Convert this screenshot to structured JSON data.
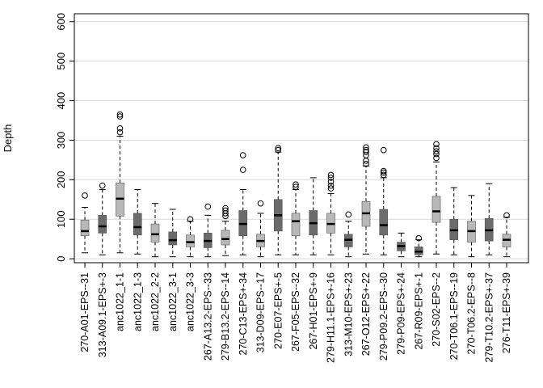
{
  "chart_data": {
    "type": "boxplot",
    "title": "",
    "xlabel": "",
    "ylabel": "Depth",
    "ylim": [
      -10,
      620
    ],
    "yticks": [
      0,
      100,
      200,
      300,
      400,
      500,
      600
    ],
    "grid": "horizontal",
    "colors": {
      "dark": "#6b6b6b",
      "light": "#b8b8b8"
    },
    "categories": [
      "270-A01-EPS--31",
      "313-A09.1-EPS+-3",
      "anc1022_1-1",
      "anc1022_1-3",
      "anc1022_2-2",
      "anc1022_3-1",
      "anc1022_3-3",
      "267-A13.2-EPS--33",
      "279-B13.2-EPS--14",
      "270-C13-EPS+-34",
      "313-D09-EPS--17",
      "270-E07-EPS+-5",
      "267-F05-EPS--32",
      "267-H01-EPS+-9",
      "279-H11.1-EPS+-16",
      "313-M10-EPS+-23",
      "267-O12-EPS+-22",
      "279-P09.2-EPS--30",
      "279-P09-EPS+-24",
      "267-R09-EPS+-1",
      "270-S02-EPS--2",
      "270-T06.1-EPS--19",
      "270-T06.2-EPS--8",
      "279-T10.2-EPS+-37",
      "276-T11-EPS+-39"
    ],
    "boxes": [
      {
        "min": 15,
        "q1": 58,
        "median": 70,
        "q3": 98,
        "max": 130,
        "outliers": [
          160
        ],
        "shade": "light"
      },
      {
        "min": 10,
        "q1": 65,
        "median": 82,
        "q3": 110,
        "max": 175,
        "outliers": [
          185
        ],
        "shade": "dark"
      },
      {
        "min": 15,
        "q1": 108,
        "median": 152,
        "q3": 192,
        "max": 310,
        "outliers": [
          320,
          330,
          360,
          365
        ],
        "shade": "light"
      },
      {
        "min": 12,
        "q1": 60,
        "median": 80,
        "q3": 115,
        "max": 175,
        "outliers": [],
        "shade": "dark"
      },
      {
        "min": 5,
        "q1": 42,
        "median": 62,
        "q3": 88,
        "max": 140,
        "outliers": [],
        "shade": "light"
      },
      {
        "min": 5,
        "q1": 35,
        "median": 47,
        "q3": 68,
        "max": 125,
        "outliers": [],
        "shade": "dark"
      },
      {
        "min": 5,
        "q1": 30,
        "median": 42,
        "q3": 60,
        "max": 95,
        "outliers": [
          100
        ],
        "shade": "light"
      },
      {
        "min": 5,
        "q1": 28,
        "median": 45,
        "q3": 65,
        "max": 110,
        "outliers": [
          132
        ],
        "shade": "dark"
      },
      {
        "min": 8,
        "q1": 35,
        "median": 50,
        "q3": 72,
        "max": 95,
        "outliers": [
          108,
          115,
          122,
          128
        ],
        "shade": "light"
      },
      {
        "min": 10,
        "q1": 58,
        "median": 88,
        "q3": 122,
        "max": 175,
        "outliers": [
          225,
          262
        ],
        "shade": "dark"
      },
      {
        "min": 5,
        "q1": 30,
        "median": 45,
        "q3": 62,
        "max": 115,
        "outliers": [
          140
        ],
        "shade": "light"
      },
      {
        "min": 10,
        "q1": 70,
        "median": 110,
        "q3": 150,
        "max": 270,
        "outliers": [
          275,
          280
        ],
        "shade": "dark"
      },
      {
        "min": 10,
        "q1": 58,
        "median": 95,
        "q3": 115,
        "max": 175,
        "outliers": [
          182,
          188
        ],
        "shade": "light"
      },
      {
        "min": 10,
        "q1": 60,
        "median": 90,
        "q3": 122,
        "max": 205,
        "outliers": [],
        "shade": "dark"
      },
      {
        "min": 10,
        "q1": 65,
        "median": 88,
        "q3": 115,
        "max": 165,
        "outliers": [
          178,
          185,
          195,
          205,
          212
        ],
        "shade": "light"
      },
      {
        "min": 5,
        "q1": 30,
        "median": 48,
        "q3": 62,
        "max": 95,
        "outliers": [
          112
        ],
        "shade": "dark"
      },
      {
        "min": 12,
        "q1": 82,
        "median": 115,
        "q3": 145,
        "max": 235,
        "outliers": [
          240,
          248,
          262,
          270,
          275,
          282
        ],
        "shade": "light"
      },
      {
        "min": 10,
        "q1": 60,
        "median": 85,
        "q3": 125,
        "max": 205,
        "outliers": [
          212,
          218,
          222,
          275
        ],
        "shade": "dark"
      },
      {
        "min": 5,
        "q1": 20,
        "median": 32,
        "q3": 42,
        "max": 65,
        "outliers": [],
        "shade": "dark"
      },
      {
        "min": 5,
        "q1": 10,
        "median": 18,
        "q3": 30,
        "max": 48,
        "outliers": [
          52
        ],
        "shade": "dark"
      },
      {
        "min": 12,
        "q1": 92,
        "median": 120,
        "q3": 158,
        "max": 245,
        "outliers": [
          255,
          265,
          272,
          280,
          290
        ],
        "shade": "light"
      },
      {
        "min": 10,
        "q1": 48,
        "median": 72,
        "q3": 100,
        "max": 180,
        "outliers": [],
        "shade": "dark"
      },
      {
        "min": 5,
        "q1": 42,
        "median": 70,
        "q3": 95,
        "max": 160,
        "outliers": [],
        "shade": "light"
      },
      {
        "min": 10,
        "q1": 45,
        "median": 72,
        "q3": 102,
        "max": 190,
        "outliers": [],
        "shade": "dark"
      },
      {
        "min": 5,
        "q1": 30,
        "median": 48,
        "q3": 62,
        "max": 105,
        "outliers": [
          110
        ],
        "shade": "light"
      }
    ]
  }
}
